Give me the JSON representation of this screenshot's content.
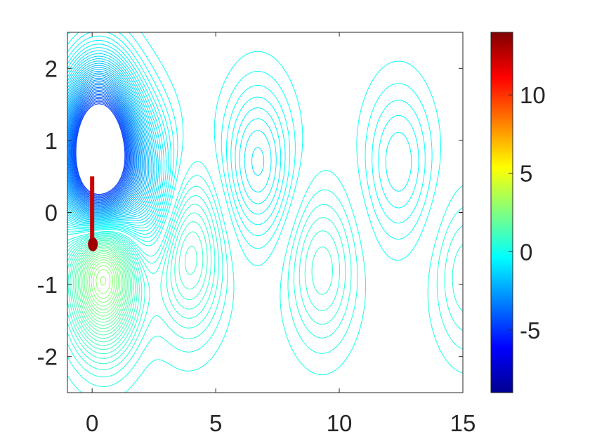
{
  "chart_data": {
    "type": "contour",
    "title": "",
    "xlabel": "",
    "ylabel": "",
    "xlim": [
      -1,
      15
    ],
    "ylim": [
      -2.5,
      2.5
    ],
    "xticks": [
      "0",
      "5",
      "10",
      "15"
    ],
    "yticks": [
      "-2",
      "-1",
      "0",
      "1",
      "2"
    ],
    "grid": false,
    "colormap": "jet",
    "colorbar": {
      "range": [
        -9,
        14
      ],
      "ticks": [
        "-5",
        "0",
        "5",
        "10"
      ],
      "placement": "right"
    },
    "plate": {
      "x": 0,
      "y_range": [
        -0.5,
        0.5
      ]
    },
    "vortices": [
      {
        "x": 0.25,
        "y": 0.75,
        "sign": -1,
        "strength": 8
      },
      {
        "x": 0.45,
        "y": -0.65,
        "sign": 1,
        "strength": 4
      },
      {
        "x": 2.0,
        "y": 0.35,
        "sign": -1,
        "strength": 1.5
      },
      {
        "x": 3.9,
        "y": -0.6,
        "sign": 1,
        "strength": 1.2
      },
      {
        "x": 6.7,
        "y": 0.7,
        "sign": -1,
        "strength": 1.0
      },
      {
        "x": 9.3,
        "y": -0.8,
        "sign": 1,
        "strength": 0.8
      },
      {
        "x": 12.4,
        "y": 0.7,
        "sign": -1,
        "strength": 0.7
      },
      {
        "x": 15.2,
        "y": -0.9,
        "sign": 1,
        "strength": 0.6
      }
    ],
    "colors": {
      "contour_low": "#00ffff",
      "plate": "#c80000",
      "axis": "#262626"
    }
  }
}
